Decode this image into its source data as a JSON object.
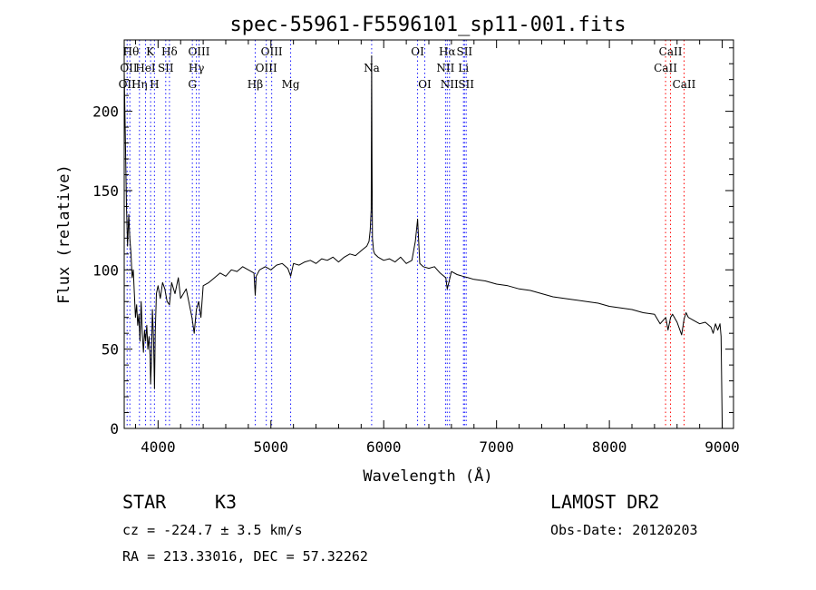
{
  "chart_data": {
    "type": "line",
    "title": "spec-55961-F5596101_sp11-001.fits",
    "xlabel": "Wavelength (Å)",
    "ylabel": "Flux (relative)",
    "xlim": [
      3700,
      9100
    ],
    "ylim": [
      0,
      245
    ],
    "xticks": [
      "4000",
      "5000",
      "6000",
      "7000",
      "8000",
      "9000"
    ],
    "yticks": [
      "0",
      "50",
      "100",
      "150",
      "200"
    ],
    "series": [
      {
        "x": [
          3700,
          3710,
          3720,
          3730,
          3740,
          3750,
          3760,
          3770,
          3780,
          3790,
          3800,
          3810,
          3820,
          3830,
          3840,
          3850,
          3860,
          3870,
          3880,
          3890,
          3900,
          3910,
          3920,
          3930,
          3934,
          3940,
          3950,
          3960,
          3968,
          3975,
          3985,
          4000,
          4020,
          4040,
          4060,
          4080,
          4101,
          4120,
          4150,
          4180,
          4200,
          4250,
          4300,
          4320,
          4340,
          4360,
          4380,
          4400,
          4450,
          4500,
          4550,
          4600,
          4650,
          4700,
          4750,
          4800,
          4850,
          4861,
          4870,
          4900,
          4950,
          5000,
          5050,
          5100,
          5150,
          5175,
          5200,
          5250,
          5300,
          5350,
          5400,
          5450,
          5500,
          5550,
          5600,
          5650,
          5700,
          5750,
          5800,
          5850,
          5870,
          5880,
          5889,
          5893,
          5896,
          5900,
          5910,
          5920,
          5950,
          6000,
          6050,
          6100,
          6150,
          6200,
          6250,
          6280,
          6300,
          6310,
          6320,
          6350,
          6400,
          6450,
          6500,
          6550,
          6563,
          6570,
          6600,
          6650,
          6700,
          6750,
          6800,
          6900,
          7000,
          7100,
          7200,
          7300,
          7400,
          7500,
          7600,
          7700,
          7800,
          7900,
          8000,
          8100,
          8200,
          8300,
          8400,
          8450,
          8500,
          8520,
          8542,
          8560,
          8600,
          8640,
          8662,
          8680,
          8700,
          8750,
          8800,
          8850,
          8900,
          8920,
          8940,
          8960,
          8980,
          8990,
          9000
        ],
        "y": [
          225,
          185,
          140,
          115,
          135,
          120,
          110,
          95,
          100,
          85,
          70,
          78,
          65,
          72,
          55,
          80,
          60,
          48,
          62,
          55,
          65,
          50,
          58,
          45,
          28,
          40,
          75,
          55,
          25,
          60,
          85,
          90,
          82,
          92,
          88,
          80,
          78,
          92,
          85,
          95,
          82,
          88,
          70,
          60,
          75,
          80,
          70,
          90,
          92,
          95,
          98,
          96,
          100,
          99,
          102,
          100,
          98,
          84,
          96,
          100,
          102,
          100,
          103,
          104,
          101,
          96,
          104,
          103,
          105,
          106,
          104,
          107,
          106,
          108,
          105,
          108,
          110,
          109,
          112,
          115,
          118,
          125,
          138,
          235,
          168,
          120,
          112,
          110,
          108,
          106,
          107,
          105,
          108,
          104,
          106,
          118,
          132,
          118,
          104,
          102,
          101,
          102,
          98,
          95,
          88,
          90,
          99,
          97,
          96,
          95,
          94,
          93,
          91,
          90,
          88,
          87,
          85,
          83,
          82,
          81,
          80,
          79,
          77,
          76,
          75,
          73,
          72,
          66,
          70,
          62,
          70,
          72,
          67,
          59,
          69,
          73,
          70,
          68,
          66,
          67,
          64,
          60,
          66,
          62,
          66,
          58,
          0
        ]
      }
    ],
    "line_marks": {
      "blue": [
        {
          "wl": 3726,
          "labels": [
            "OII",
            "OII"
          ]
        },
        {
          "wl": 3750,
          "labels": [
            "Hθ"
          ]
        },
        {
          "wl": 3835,
          "labels": [
            "Hη"
          ]
        },
        {
          "wl": 3889,
          "labels": [
            "HeI"
          ]
        },
        {
          "wl": 3934,
          "labels": [
            "K"
          ]
        },
        {
          "wl": 3968,
          "labels": [
            "H"
          ]
        },
        {
          "wl": 4068,
          "labels": [
            "SII"
          ]
        },
        {
          "wl": 4101,
          "labels": [
            "Hδ"
          ]
        },
        {
          "wl": 4304,
          "labels": [
            "G"
          ]
        },
        {
          "wl": 4340,
          "labels": [
            "Hγ"
          ]
        },
        {
          "wl": 4363,
          "labels": [
            "OIII"
          ]
        },
        {
          "wl": 4861,
          "labels": [
            "Hβ"
          ]
        },
        {
          "wl": 4959,
          "labels": [
            "OIII"
          ]
        },
        {
          "wl": 5007,
          "labels": [
            "OIII"
          ]
        },
        {
          "wl": 5175,
          "labels": [
            "Mg"
          ]
        },
        {
          "wl": 5893,
          "labels": [
            "Na"
          ]
        },
        {
          "wl": 6300,
          "labels": [
            "OI"
          ]
        },
        {
          "wl": 6364,
          "labels": [
            "OI"
          ]
        },
        {
          "wl": 6548,
          "labels": [
            "NII"
          ]
        },
        {
          "wl": 6563,
          "labels": [
            "Hα"
          ]
        },
        {
          "wl": 6583,
          "labels": [
            "NII"
          ]
        },
        {
          "wl": 6707,
          "labels": [
            "Li"
          ]
        },
        {
          "wl": 6716,
          "labels": [
            "SII"
          ]
        },
        {
          "wl": 6731,
          "labels": [
            "SII"
          ]
        }
      ],
      "red": [
        {
          "wl": 8498,
          "labels": [
            "CaII"
          ]
        },
        {
          "wl": 8542,
          "labels": [
            "CaII"
          ]
        },
        {
          "wl": 8662,
          "labels": [
            "CaII"
          ]
        }
      ],
      "label_rows": [
        {
          "text": "Hθ",
          "wl": 3760,
          "row": 0
        },
        {
          "text": "K",
          "wl": 3930,
          "row": 0
        },
        {
          "text": "Hδ",
          "wl": 4101,
          "row": 0
        },
        {
          "text": "OIII",
          "wl": 4363,
          "row": 0
        },
        {
          "text": "OIII",
          "wl": 5007,
          "row": 0
        },
        {
          "text": "OI",
          "wl": 6300,
          "row": 0
        },
        {
          "text": "Hα",
          "wl": 6563,
          "row": 0
        },
        {
          "text": "SII",
          "wl": 6716,
          "row": 0
        },
        {
          "text": "CaII",
          "wl": 8542,
          "row": 0
        },
        {
          "text": "OII",
          "wl": 3740,
          "row": 1
        },
        {
          "text": "HeI",
          "wl": 3889,
          "row": 1
        },
        {
          "text": "SII",
          "wl": 4068,
          "row": 1
        },
        {
          "text": "Hγ",
          "wl": 4340,
          "row": 1
        },
        {
          "text": "OIII",
          "wl": 4959,
          "row": 1
        },
        {
          "text": "Na",
          "wl": 5893,
          "row": 1
        },
        {
          "text": "NII",
          "wl": 6548,
          "row": 1
        },
        {
          "text": "Li",
          "wl": 6707,
          "row": 1
        },
        {
          "text": "CaII",
          "wl": 8498,
          "row": 1
        },
        {
          "text": "OII",
          "wl": 3726,
          "row": 2
        },
        {
          "text": "Hη",
          "wl": 3835,
          "row": 2
        },
        {
          "text": "H",
          "wl": 3968,
          "row": 2
        },
        {
          "text": "G",
          "wl": 4304,
          "row": 2
        },
        {
          "text": "Hβ",
          "wl": 4861,
          "row": 2
        },
        {
          "text": "Mg",
          "wl": 5175,
          "row": 2
        },
        {
          "text": "OI",
          "wl": 6364,
          "row": 2
        },
        {
          "text": "NII",
          "wl": 6583,
          "row": 2
        },
        {
          "text": "SII",
          "wl": 6731,
          "row": 2
        },
        {
          "text": "CaII",
          "wl": 8662,
          "row": 2
        }
      ]
    },
    "colors": {
      "spectrum": "#000000",
      "blue_lines": "#1a1aff",
      "red_lines": "#ff0000"
    },
    "grid": false
  },
  "info": {
    "object_class": "STAR",
    "subclass": "K3",
    "survey": "LAMOST DR2",
    "velocity": "cz = -224.7 ± 3.5 km/s",
    "obs_date": "Obs-Date: 20120203",
    "coords": "RA = 213.33016, DEC =  57.32262"
  }
}
